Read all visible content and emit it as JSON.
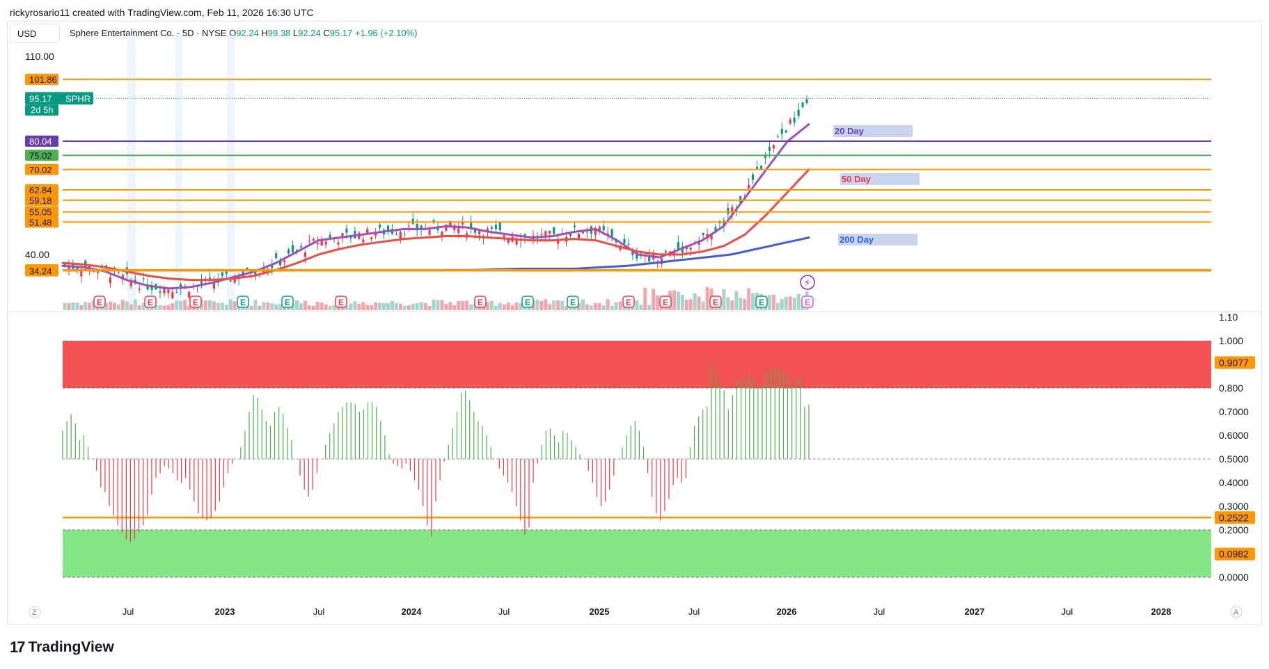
{
  "header": {
    "credit": "rickyrosario11 created with TradingView.com, Feb 11, 2026 16:30 UTC",
    "currency": "USD",
    "symbol_title": "Sphere Entertainment Co. · 5D · NYSE",
    "ohlc": [
      {
        "label": "O",
        "value": "92.24"
      },
      {
        "label": "H",
        "value": "99.38"
      },
      {
        "label": "L",
        "value": "92.24"
      },
      {
        "label": "C",
        "value": "95.17"
      }
    ],
    "change": "+1.96 (+2.10%)"
  },
  "brand": {
    "logo_text": "TradingView"
  },
  "chart_data": [
    {
      "type": "candlestick",
      "ticker": "SPHR",
      "y_axis_labels": [
        "110.00",
        "40.00"
      ],
      "price_tag": {
        "value": "95.17",
        "ticker": "SPHR",
        "countdown": "2d 5h"
      },
      "horizontal_levels": [
        {
          "value": "101.86",
          "color": "#ff9800"
        },
        {
          "value": "80.04",
          "color": "#673ab7"
        },
        {
          "value": "75.02",
          "color": "#4caf50"
        },
        {
          "value": "70.02",
          "color": "#ff9800"
        },
        {
          "value": "62.84",
          "color": "#ff9800"
        },
        {
          "value": "59.18",
          "color": "#ff9800"
        },
        {
          "value": "55.05",
          "color": "#ff9800"
        },
        {
          "value": "51.48",
          "color": "#ff9800"
        },
        {
          "value": "34.59",
          "color": "#ff9800"
        },
        {
          "value": "34.24",
          "color": "#ff9800"
        }
      ],
      "moving_average_labels": [
        {
          "text": "20 Day",
          "color": "#673ab7"
        },
        {
          "text": "50 Day",
          "color": "#f23645"
        },
        {
          "text": "200 Day",
          "color": "#2962ff"
        }
      ],
      "x_axis_labels": [
        "Jul",
        "2023",
        "Jul",
        "2024",
        "Jul",
        "2025",
        "Jul",
        "2026",
        "Jul",
        "2027",
        "Jul",
        "2028"
      ],
      "earnings_marker": "E",
      "series": [
        {
          "name": "20 Day",
          "values": [
            36,
            35.5,
            34,
            31,
            29,
            28,
            28.5,
            30,
            32,
            34,
            37,
            41,
            45,
            46,
            47,
            48,
            49,
            49,
            50,
            49.5,
            48,
            47,
            46,
            46.5,
            48,
            49,
            45,
            40,
            39,
            42,
            45,
            50,
            60,
            70,
            80,
            86
          ]
        },
        {
          "name": "50 Day",
          "values": [
            37,
            36.5,
            35.5,
            34,
            32.5,
            31.5,
            31,
            31,
            31.5,
            32.5,
            34.5,
            37,
            40,
            42,
            43.5,
            44.5,
            45.5,
            46,
            46.5,
            46.5,
            46,
            45.5,
            45,
            45,
            45.5,
            45,
            43,
            41,
            40,
            40,
            41,
            43,
            47,
            54,
            62,
            70
          ]
        },
        {
          "name": "200 Day",
          "values": [
            34.5,
            34.5,
            34.8,
            35,
            35,
            35,
            35.5,
            36,
            37,
            38,
            39,
            40,
            42,
            44,
            46
          ]
        }
      ]
    },
    {
      "type": "bar",
      "title": "",
      "y_axis_labels": [
        "1.10",
        "1.000",
        "0.9077",
        "0.800",
        "0.7000",
        "0.6000",
        "0.5000",
        "0.4000",
        "0.3000",
        "0.2522",
        "0.2000",
        "0.0982",
        "0.0000"
      ],
      "ylim": [
        0,
        1.1
      ],
      "baseline": 0.5,
      "tagged_levels": [
        "0.9077",
        "0.2522",
        "0.0982"
      ],
      "overbought_zone": [
        0.8,
        1.0
      ],
      "oversold_zone": [
        0.0,
        0.2
      ],
      "level_line": 0.2522,
      "values": [
        0.62,
        0.66,
        0.69,
        0.65,
        0.58,
        0.6,
        0.55,
        0.5,
        0.45,
        0.38,
        0.36,
        0.3,
        0.26,
        0.22,
        0.19,
        0.16,
        0.15,
        0.16,
        0.19,
        0.22,
        0.26,
        0.35,
        0.42,
        0.44,
        0.47,
        0.46,
        0.44,
        0.41,
        0.4,
        0.42,
        0.37,
        0.32,
        0.27,
        0.25,
        0.24,
        0.25,
        0.28,
        0.32,
        0.38,
        0.44,
        0.48,
        0.5,
        0.55,
        0.62,
        0.7,
        0.77,
        0.76,
        0.71,
        0.66,
        0.64,
        0.7,
        0.72,
        0.69,
        0.63,
        0.58,
        0.5,
        0.43,
        0.37,
        0.34,
        0.37,
        0.44,
        0.5,
        0.56,
        0.61,
        0.65,
        0.7,
        0.72,
        0.74,
        0.74,
        0.73,
        0.7,
        0.71,
        0.74,
        0.74,
        0.72,
        0.66,
        0.6,
        0.52,
        0.48,
        0.47,
        0.46,
        0.48,
        0.45,
        0.41,
        0.37,
        0.3,
        0.22,
        0.17,
        0.32,
        0.41,
        0.49,
        0.56,
        0.63,
        0.7,
        0.78,
        0.79,
        0.75,
        0.7,
        0.66,
        0.64,
        0.6,
        0.55,
        0.5,
        0.46,
        0.43,
        0.4,
        0.36,
        0.3,
        0.24,
        0.18,
        0.21,
        0.4,
        0.48,
        0.56,
        0.62,
        0.63,
        0.6,
        0.57,
        0.62,
        0.61,
        0.58,
        0.55,
        0.52,
        0.5,
        0.45,
        0.4,
        0.34,
        0.3,
        0.32,
        0.37,
        0.43,
        0.5,
        0.55,
        0.6,
        0.64,
        0.66,
        0.62,
        0.55,
        0.44,
        0.34,
        0.27,
        0.24,
        0.28,
        0.33,
        0.39,
        0.42,
        0.4,
        0.42,
        0.55,
        0.64,
        0.68,
        0.71,
        0.72,
        0.9,
        0.87,
        0.83,
        0.79,
        0.71,
        0.77,
        0.84,
        0.83,
        0.85,
        0.86,
        0.84,
        0.8,
        0.82,
        0.87,
        0.88,
        0.89,
        0.88,
        0.87,
        0.86,
        0.81,
        0.84,
        0.85,
        0.72,
        0.73
      ]
    }
  ]
}
